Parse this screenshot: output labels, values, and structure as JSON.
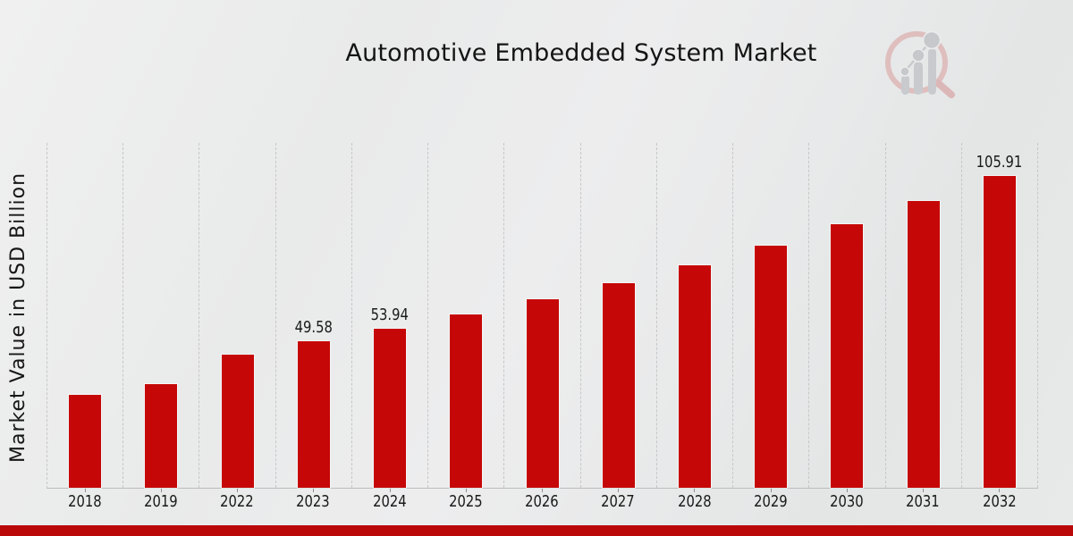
{
  "header": {
    "title": "Automotive Embedded System Market"
  },
  "watermark": {
    "icon": "magnifier-bar-chart-logo-icon",
    "ring_color": "#dfbaba",
    "bars_color": "#c5c7cc"
  },
  "chart_data": {
    "type": "bar",
    "title": "Automotive Embedded System Market",
    "xlabel": "",
    "ylabel": "Market Value in USD Billion",
    "categories": [
      "2018",
      "2019",
      "2022",
      "2023",
      "2024",
      "2025",
      "2026",
      "2027",
      "2028",
      "2029",
      "2030",
      "2031",
      "2032"
    ],
    "values": [
      31.66,
      35.27,
      45.12,
      49.58,
      53.94,
      58.68,
      63.84,
      69.46,
      75.57,
      82.22,
      89.45,
      97.32,
      105.91
    ],
    "data_labels": {
      "2023": "49.58",
      "2024": "53.94",
      "2032": "105.91"
    },
    "bar_color": "#c60707",
    "ylim": [
      0,
      117
    ],
    "y_ticks_shown": false,
    "grid": "vertical dashed between categories",
    "gridline_color": "#c7c7c7",
    "legend_position": "none"
  },
  "footer": {
    "accent_color": "#ba0808"
  }
}
